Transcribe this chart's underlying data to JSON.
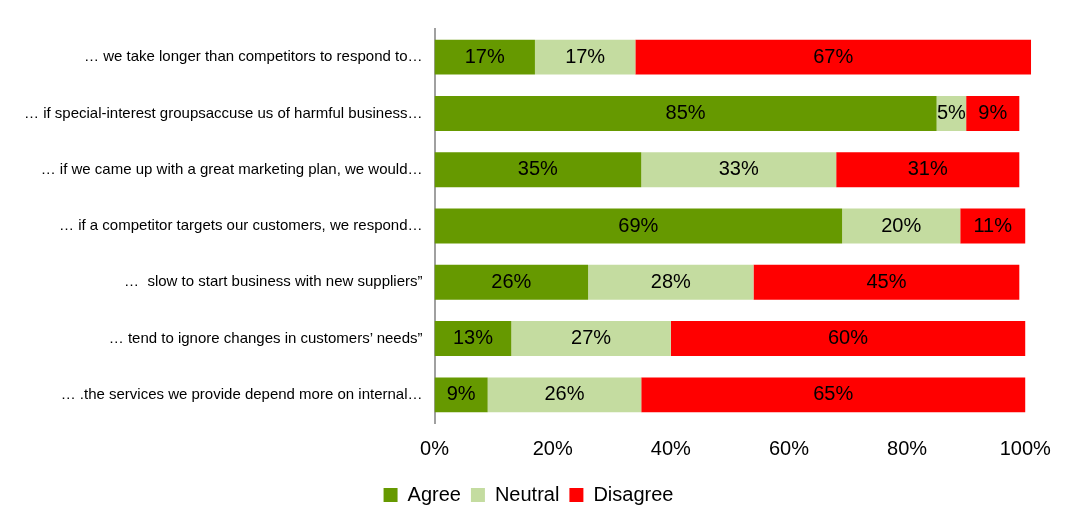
{
  "chart_data": {
    "type": "bar",
    "orientation": "horizontal",
    "stacked": true,
    "legend": "bottom",
    "grid": false,
    "categories": [
      "… we take longer than competitors to respond to…",
      "… if special-interest groupsaccuse us of harmful business…",
      "… if we came up with a great marketing plan, we would…",
      "… if a competitor targets our customers, we respond…",
      "…  slow to start business with new suppliers”",
      "… tend to ignore changes in customers’ needs”",
      "… .the services we provide depend more on internal…"
    ],
    "series": [
      {
        "name": "Agree",
        "color": "#669900",
        "values": [
          17,
          85,
          35,
          69,
          26,
          13,
          9
        ],
        "value_labels": [
          "17%",
          "85%",
          "35%",
          "69%",
          "26%",
          "13%",
          "9%"
        ]
      },
      {
        "name": "Neutral",
        "color": "#c4dca0",
        "values": [
          17,
          5,
          33,
          20,
          28,
          27,
          26
        ],
        "value_labels": [
          "17%",
          "5%",
          "33%",
          "20%",
          "28%",
          "27%",
          "26%"
        ]
      },
      {
        "name": "Disagree",
        "color": "#ff0000",
        "values": [
          67,
          9,
          31,
          11,
          45,
          60,
          65
        ],
        "value_labels": [
          "67%",
          "9%",
          "31%",
          "11%",
          "45%",
          "60%",
          "65%"
        ]
      }
    ],
    "xlim": [
      0,
      101
    ],
    "xticks": [
      {
        "value": 0,
        "label": "0%"
      },
      {
        "value": 20,
        "label": "20%"
      },
      {
        "value": 40,
        "label": "40%"
      },
      {
        "value": 60,
        "label": "60%"
      },
      {
        "value": 80,
        "label": "80%"
      },
      {
        "value": 100,
        "label": "100%"
      }
    ]
  }
}
